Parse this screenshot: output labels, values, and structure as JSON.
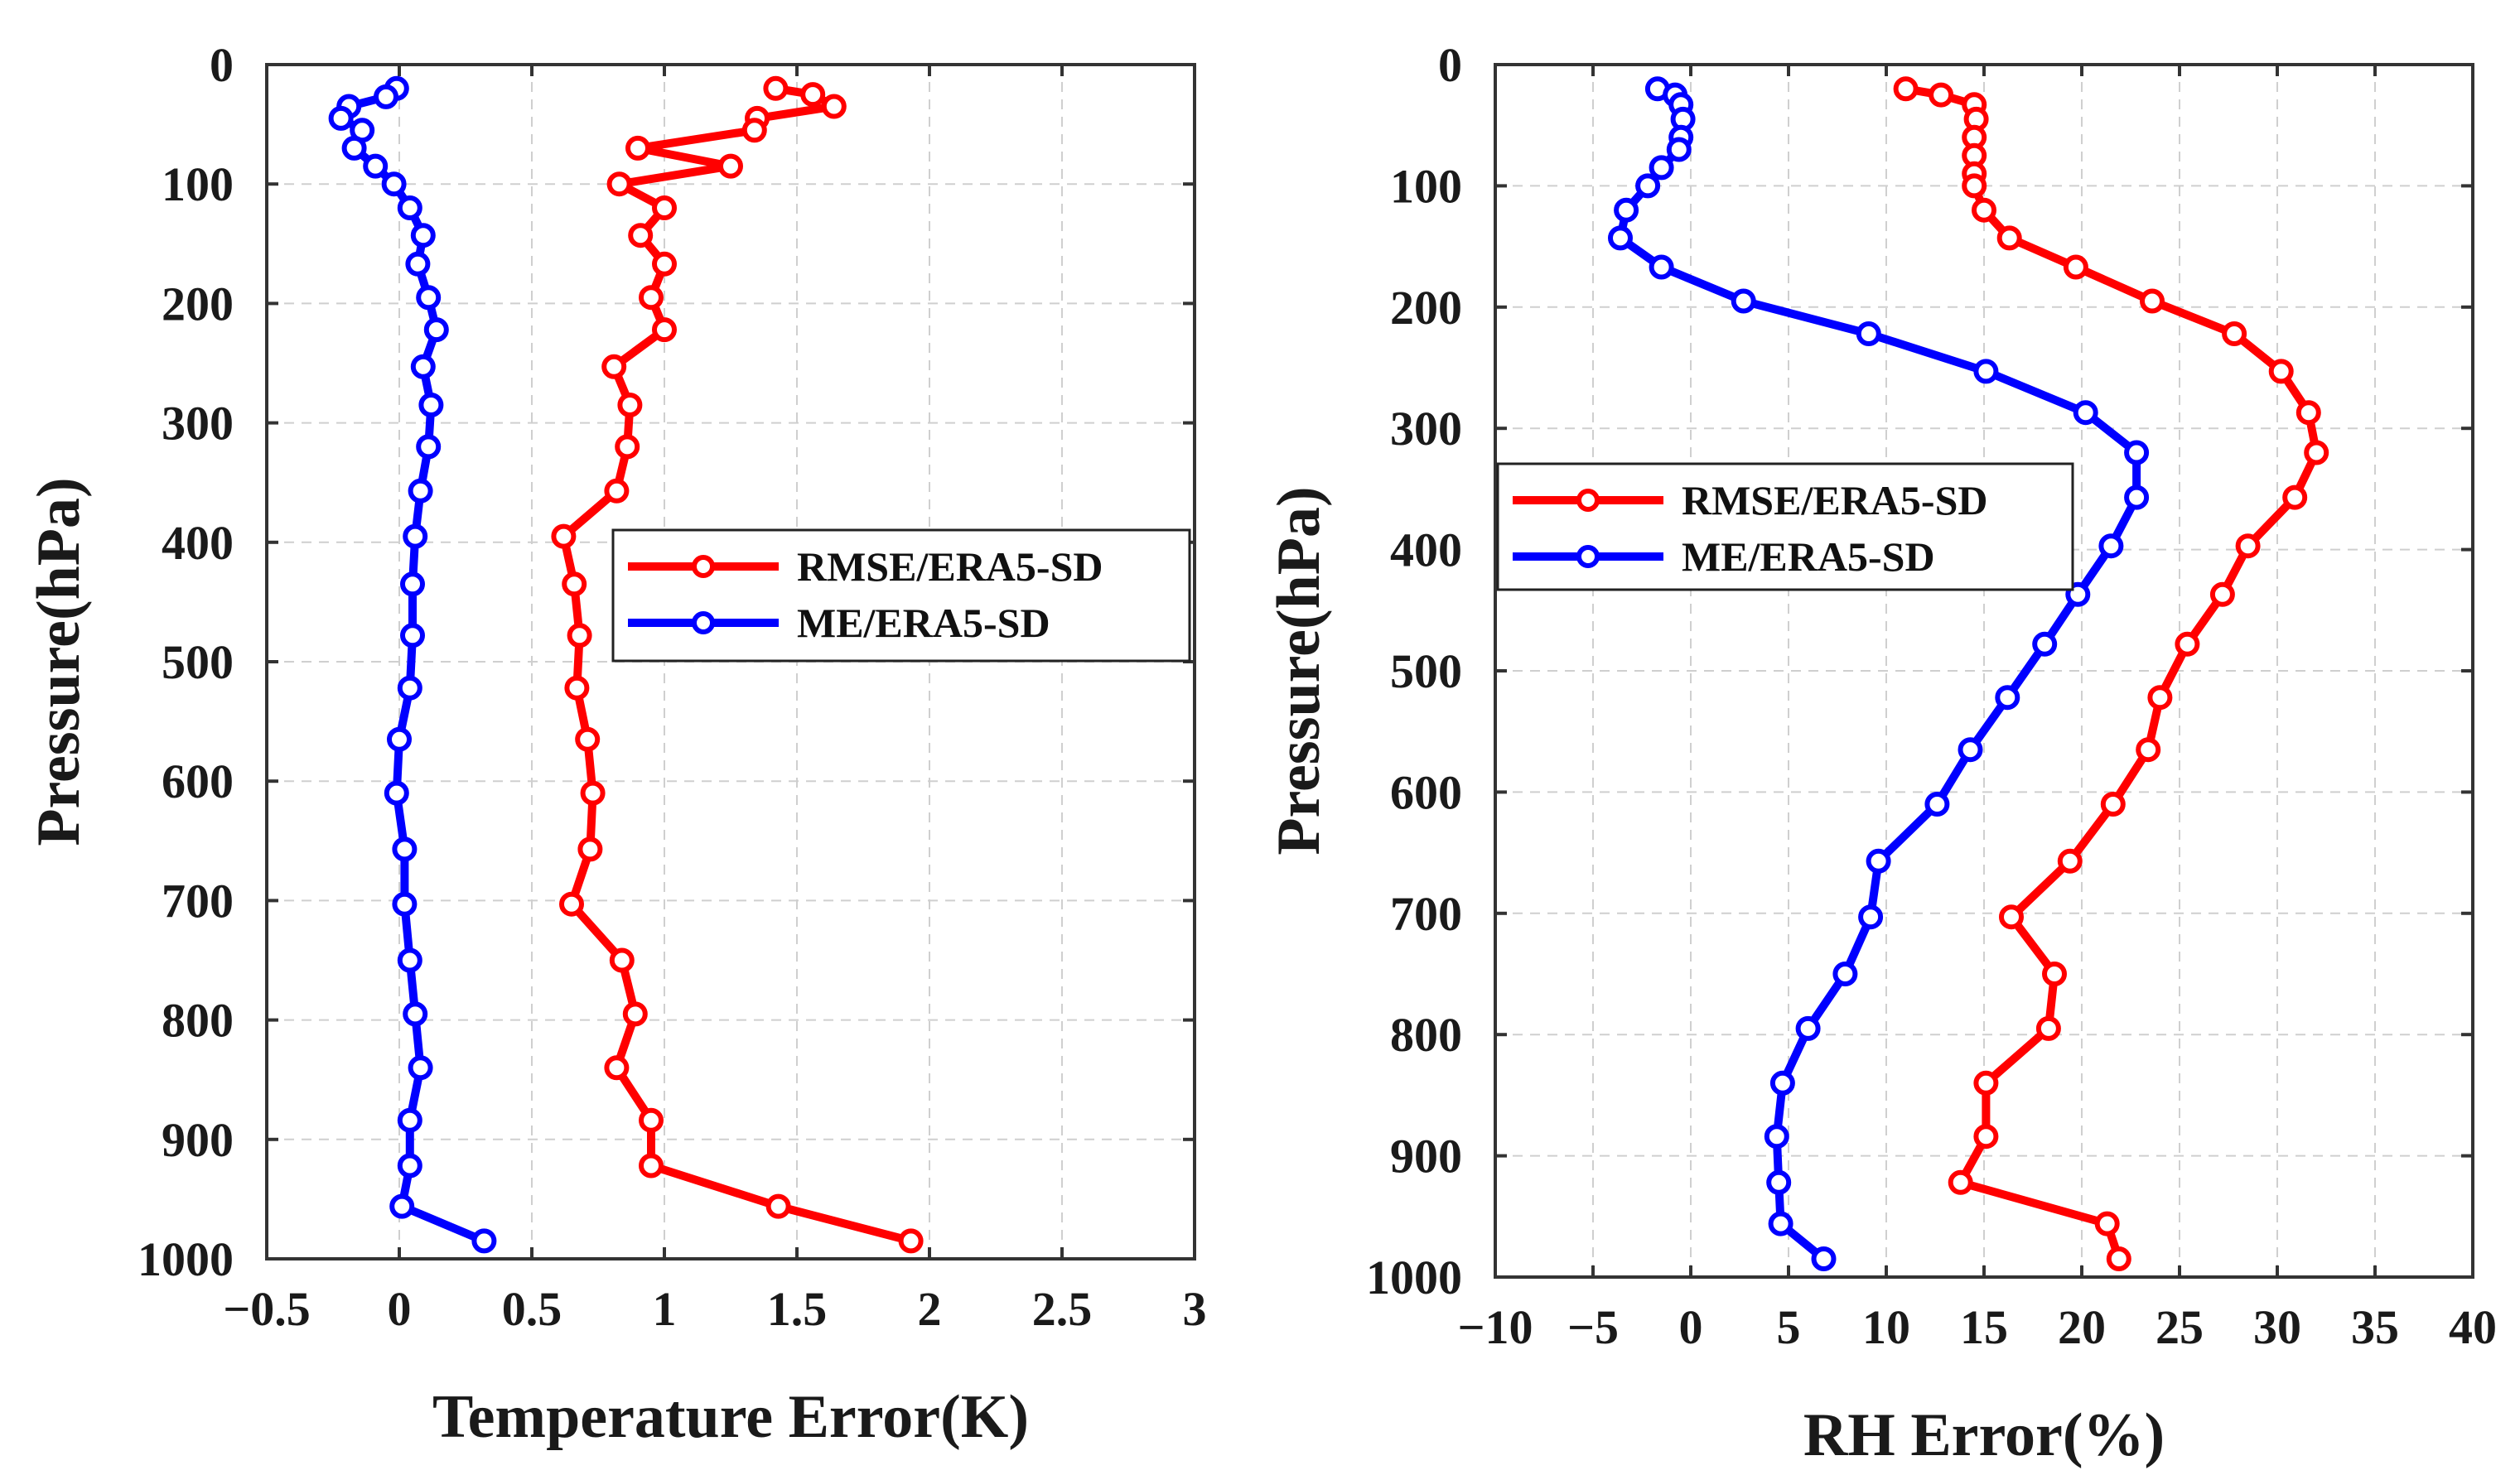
{
  "chart_data": [
    {
      "type": "line",
      "xlabel": "Temperature Error(K)",
      "ylabel": "Pressure(hPa)",
      "xlim": [
        -0.5,
        3
      ],
      "ylim": [
        0,
        1000
      ],
      "y_reversed": true,
      "xticks": [
        -0.5,
        0,
        0.5,
        1,
        1.5,
        2,
        2.5,
        3
      ],
      "xtick_labels": [
        "−0.5",
        "0",
        "0.5",
        "1",
        "1.5",
        "2",
        "2.5",
        "3"
      ],
      "yticks": [
        0,
        100,
        200,
        300,
        400,
        500,
        600,
        700,
        800,
        900,
        1000
      ],
      "ytick_labels": [
        "0",
        "100",
        "200",
        "300",
        "400",
        "500",
        "600",
        "700",
        "800",
        "900",
        "1000"
      ],
      "grid": true,
      "legend_position": "center-right",
      "series": [
        {
          "name": "RMSE/ERA5-SD",
          "color": "#ff0000",
          "points": [
            [
              1.42,
              20
            ],
            [
              1.56,
              25
            ],
            [
              1.64,
              35
            ],
            [
              1.35,
              45
            ],
            [
              1.34,
              55
            ],
            [
              0.9,
              70
            ],
            [
              1.25,
              85
            ],
            [
              0.83,
              100
            ],
            [
              1.0,
              120
            ],
            [
              0.91,
              143
            ],
            [
              1.0,
              167
            ],
            [
              0.95,
              195
            ],
            [
              1.0,
              222
            ],
            [
              0.81,
              253
            ],
            [
              0.87,
              285
            ],
            [
              0.86,
              320
            ],
            [
              0.82,
              357
            ],
            [
              0.62,
              395
            ],
            [
              0.66,
              435
            ],
            [
              0.68,
              478
            ],
            [
              0.67,
              522
            ],
            [
              0.71,
              565
            ],
            [
              0.73,
              610
            ],
            [
              0.72,
              657
            ],
            [
              0.65,
              703
            ],
            [
              0.84,
              750
            ],
            [
              0.89,
              795
            ],
            [
              0.82,
              840
            ],
            [
              0.95,
              884
            ],
            [
              0.95,
              922
            ],
            [
              1.43,
              956
            ],
            [
              1.93,
              985
            ]
          ]
        },
        {
          "name": "ME/ERA5-SD",
          "color": "#0000ff",
          "points": [
            [
              -0.01,
              20
            ],
            [
              -0.05,
              27
            ],
            [
              -0.19,
              35
            ],
            [
              -0.22,
              45
            ],
            [
              -0.14,
              55
            ],
            [
              -0.17,
              70
            ],
            [
              -0.09,
              85
            ],
            [
              -0.02,
              100
            ],
            [
              0.04,
              120
            ],
            [
              0.09,
              143
            ],
            [
              0.07,
              167
            ],
            [
              0.11,
              195
            ],
            [
              0.14,
              222
            ],
            [
              0.09,
              253
            ],
            [
              0.12,
              285
            ],
            [
              0.11,
              320
            ],
            [
              0.08,
              357
            ],
            [
              0.06,
              395
            ],
            [
              0.05,
              435
            ],
            [
              0.05,
              478
            ],
            [
              0.04,
              522
            ],
            [
              0.0,
              565
            ],
            [
              -0.01,
              610
            ],
            [
              0.02,
              657
            ],
            [
              0.02,
              703
            ],
            [
              0.04,
              750
            ],
            [
              0.06,
              795
            ],
            [
              0.08,
              840
            ],
            [
              0.04,
              884
            ],
            [
              0.04,
              922
            ],
            [
              0.01,
              956
            ],
            [
              0.32,
              985
            ]
          ]
        }
      ]
    },
    {
      "type": "line",
      "xlabel": "RH Error(%)",
      "ylabel": "Pressure(hPa)",
      "xlim": [
        -10,
        40
      ],
      "ylim": [
        0,
        1000
      ],
      "y_reversed": true,
      "xticks": [
        -10,
        -5,
        0,
        5,
        10,
        15,
        20,
        25,
        30,
        35,
        40
      ],
      "xtick_labels": [
        "−10",
        "−5",
        "0",
        "5",
        "10",
        "15",
        "20",
        "25",
        "30",
        "35",
        "40"
      ],
      "yticks": [
        0,
        100,
        200,
        300,
        400,
        500,
        600,
        700,
        800,
        900,
        1000
      ],
      "ytick_labels": [
        "0",
        "100",
        "200",
        "300",
        "400",
        "500",
        "600",
        "700",
        "800",
        "900",
        "1000"
      ],
      "grid": true,
      "legend_position": "center-left",
      "series": [
        {
          "name": "RMSE/ERA5-SD",
          "color": "#ff0000",
          "points": [
            [
              11.0,
              20
            ],
            [
              12.8,
              25
            ],
            [
              14.5,
              33
            ],
            [
              14.6,
              45
            ],
            [
              14.5,
              60
            ],
            [
              14.5,
              75
            ],
            [
              14.5,
              90
            ],
            [
              14.5,
              100
            ],
            [
              15.0,
              120
            ],
            [
              16.3,
              143
            ],
            [
              19.7,
              167
            ],
            [
              23.6,
              195
            ],
            [
              27.8,
              222
            ],
            [
              30.2,
              253
            ],
            [
              31.6,
              287
            ],
            [
              32.0,
              320
            ],
            [
              30.9,
              357
            ],
            [
              28.5,
              397
            ],
            [
              27.2,
              437
            ],
            [
              25.4,
              478
            ],
            [
              24.0,
              522
            ],
            [
              23.4,
              565
            ],
            [
              21.6,
              610
            ],
            [
              19.4,
              657
            ],
            [
              16.4,
              703
            ],
            [
              18.6,
              750
            ],
            [
              18.3,
              795
            ],
            [
              15.1,
              840
            ],
            [
              15.1,
              884
            ],
            [
              13.8,
              922
            ],
            [
              21.3,
              956
            ],
            [
              21.9,
              985
            ]
          ]
        },
        {
          "name": "ME/ERA5-SD",
          "color": "#0000ff",
          "points": [
            [
              -1.7,
              20
            ],
            [
              -0.8,
              25
            ],
            [
              -0.5,
              33
            ],
            [
              -0.4,
              45
            ],
            [
              -0.5,
              60
            ],
            [
              -0.6,
              70
            ],
            [
              -1.5,
              85
            ],
            [
              -2.2,
              100
            ],
            [
              -3.3,
              120
            ],
            [
              -3.6,
              143
            ],
            [
              -1.5,
              167
            ],
            [
              2.7,
              195
            ],
            [
              9.1,
              222
            ],
            [
              15.1,
              253
            ],
            [
              20.2,
              287
            ],
            [
              22.8,
              320
            ],
            [
              22.8,
              357
            ],
            [
              21.5,
              397
            ],
            [
              19.8,
              437
            ],
            [
              18.1,
              478
            ],
            [
              16.2,
              522
            ],
            [
              14.3,
              565
            ],
            [
              12.6,
              610
            ],
            [
              9.6,
              657
            ],
            [
              9.2,
              703
            ],
            [
              7.9,
              750
            ],
            [
              6.0,
              795
            ],
            [
              4.7,
              840
            ],
            [
              4.4,
              884
            ],
            [
              4.5,
              922
            ],
            [
              4.6,
              956
            ],
            [
              6.8,
              985
            ]
          ]
        }
      ]
    }
  ]
}
